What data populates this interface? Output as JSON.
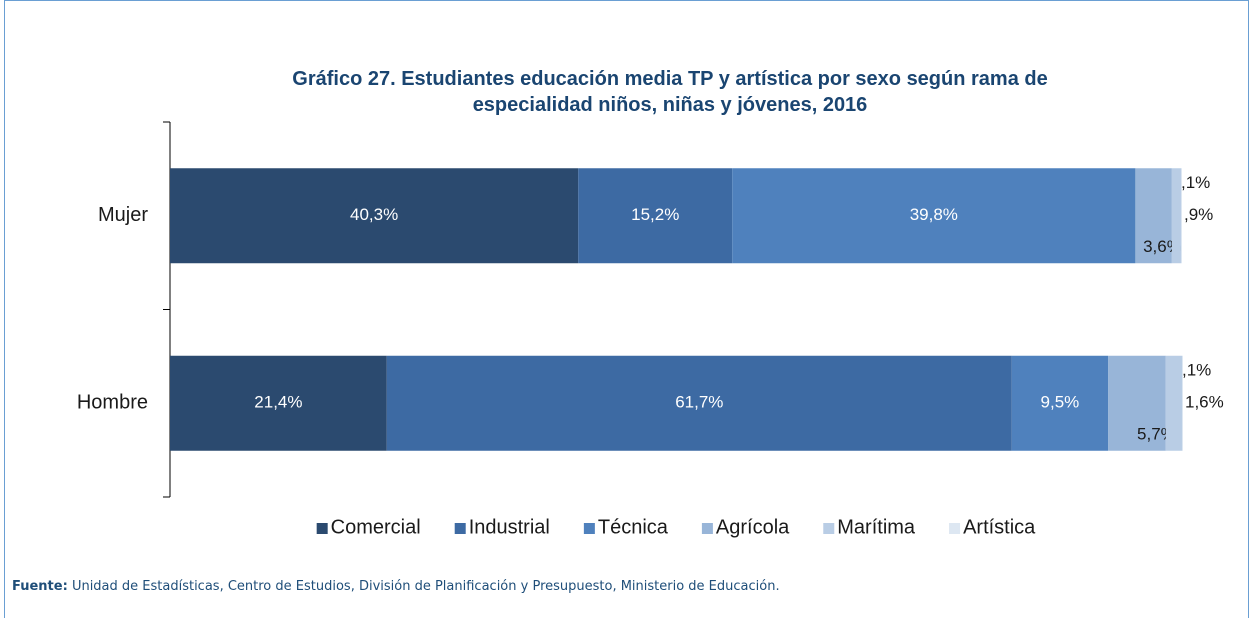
{
  "chart_data": {
    "type": "stacked-bar-horizontal",
    "title": "Gráfico 27. Estudiantes educación media TP y artística por sexo según rama de especialidad niños, niñas y jóvenes, 2016",
    "categories": [
      "Mujer",
      "Hombre"
    ],
    "xlim": [
      0,
      100
    ],
    "series": [
      {
        "name": "Comercial",
        "color": "#2b4a6f",
        "values": [
          40.3,
          21.4
        ],
        "value_labels": [
          "40,3%",
          "21,4%"
        ]
      },
      {
        "name": "Industrial",
        "color": "#3d6aa3",
        "values": [
          15.2,
          61.7
        ],
        "value_labels": [
          "15,2%",
          "61,7%"
        ]
      },
      {
        "name": "Técnica",
        "color": "#4f81bd",
        "values": [
          39.8,
          9.5
        ],
        "value_labels": [
          "39,8%",
          "9,5%"
        ]
      },
      {
        "name": "Agrícola",
        "color": "#98b5d8",
        "values": [
          3.6,
          5.7
        ],
        "value_labels": [
          "3,6%",
          "5,7%"
        ]
      },
      {
        "name": "Marítima",
        "color": "#b9cde5",
        "values": [
          0.9,
          1.6
        ],
        "value_labels": [
          ",9%",
          "1,6%"
        ]
      },
      {
        "name": "Artística",
        "color": "#dde7f2",
        "values": [
          0.1,
          0.1
        ],
        "value_labels": [
          ",1%",
          ",1%"
        ]
      }
    ],
    "legend": "bottom",
    "source": {
      "label": "Fuente:",
      "text": "Unidad de Estadísticas, Centro de Estudios, División de Planificación y Presupuesto, Ministerio de Educación."
    }
  }
}
